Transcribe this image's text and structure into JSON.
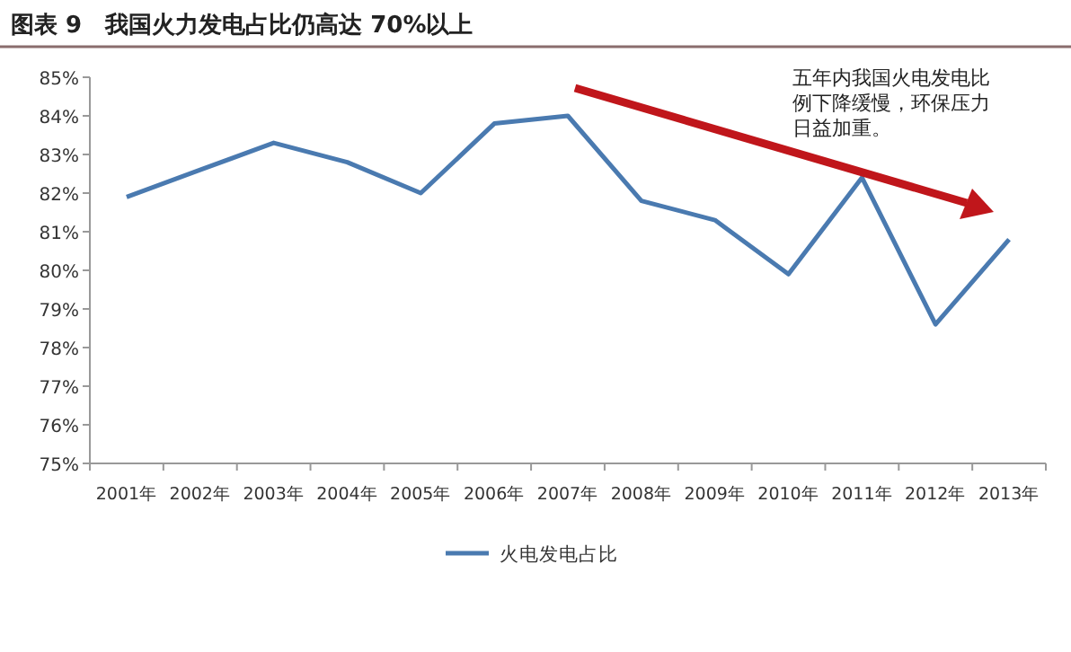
{
  "chart_data": {
    "type": "line",
    "title": "图表 9　我国火力发电占比仍高达 70%以上",
    "categories": [
      "2001年",
      "2002年",
      "2003年",
      "2004年",
      "2005年",
      "2006年",
      "2007年",
      "2008年",
      "2009年",
      "2010年",
      "2011年",
      "2012年",
      "2013年"
    ],
    "series": [
      {
        "name": "火电发电占比",
        "color": "#4a7ab0",
        "values": [
          81.9,
          82.6,
          83.3,
          82.8,
          82.0,
          83.8,
          84.0,
          81.8,
          81.3,
          79.9,
          82.4,
          78.6,
          80.8
        ]
      }
    ],
    "ylim": [
      75,
      85
    ],
    "yticks": [
      {
        "value": 75,
        "label": "75%"
      },
      {
        "value": 76,
        "label": "76%"
      },
      {
        "value": 77,
        "label": "77%"
      },
      {
        "value": 78,
        "label": "78%"
      },
      {
        "value": 79,
        "label": "79%"
      },
      {
        "value": 80,
        "label": "80%"
      },
      {
        "value": 81,
        "label": "81%"
      },
      {
        "value": 82,
        "label": "82%"
      },
      {
        "value": 83,
        "label": "83%"
      },
      {
        "value": 84,
        "label": "84%"
      },
      {
        "value": 85,
        "label": "85%"
      }
    ],
    "annotations": [
      "五年内我国火电发电比例下降缓慢，环保压力日益加重。"
    ],
    "legend": "bottom",
    "marker": "none",
    "line_style": "solid"
  }
}
